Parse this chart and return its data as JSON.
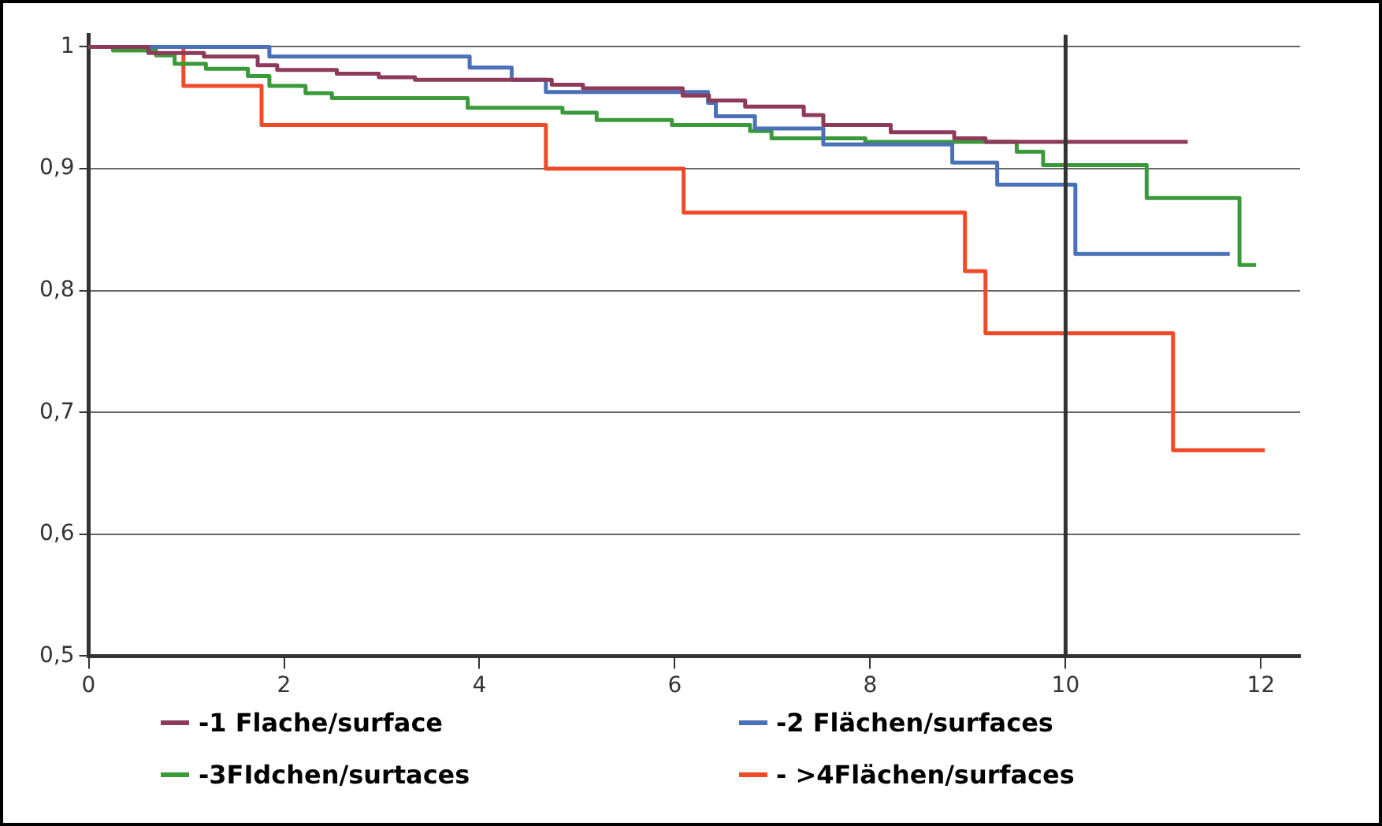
{
  "chart_data": {
    "type": "step",
    "xlim": [
      0,
      12.4
    ],
    "ylim": [
      0.5,
      1.01
    ],
    "xticks": [
      0,
      2,
      4,
      6,
      8,
      10,
      12
    ],
    "yticks": [
      {
        "value": 0.5,
        "label": "0,5"
      },
      {
        "value": 0.6,
        "label": "0,6"
      },
      {
        "value": 0.7,
        "label": "0,7"
      },
      {
        "value": 0.8,
        "label": "0,8"
      },
      {
        "value": 0.9,
        "label": "0,9"
      },
      1
    ],
    "grid": "y",
    "legend": "bottom",
    "marker": "none",
    "line_style": "solid",
    "ref_lines": [
      {
        "axis": "x",
        "value": 10,
        "color": "#333333"
      }
    ],
    "series": [
      {
        "name": "-1 Flache/surface",
        "color": "#8e3a5a",
        "x": [
          0,
          0.61,
          1.18,
          1.73,
          1.93,
          2.54,
          2.97,
          3.34,
          4.74,
          5.06,
          6.08,
          6.35,
          6.72,
          7.32,
          7.52,
          8.21,
          8.86,
          9.18,
          11.25
        ],
        "values": [
          1,
          0.995,
          0.992,
          0.985,
          0.981,
          0.978,
          0.975,
          0.973,
          0.969,
          0.966,
          0.96,
          0.956,
          0.951,
          0.944,
          0.936,
          0.93,
          0.925,
          0.922,
          0.922
        ]
      },
      {
        "name": "-2 Flächen/surfaces",
        "color": "#4a70b8",
        "x": [
          0,
          1.85,
          3.9,
          4.33,
          4.68,
          6.34,
          6.42,
          6.82,
          7.52,
          8.84,
          9.3,
          10.1,
          11.68
        ],
        "values": [
          1,
          0.992,
          0.983,
          0.973,
          0.963,
          0.954,
          0.943,
          0.933,
          0.92,
          0.905,
          0.887,
          0.83,
          0.83
        ]
      },
      {
        "name": "-3FIdchen/surtaces",
        "color": "#3a9a3a",
        "x": [
          0,
          0.25,
          0.69,
          0.88,
          1.2,
          1.63,
          1.85,
          2.22,
          2.49,
          3.88,
          4.85,
          5.2,
          5.97,
          6.77,
          6.99,
          7.95,
          9.5,
          9.77,
          10.83,
          11.78,
          11.95
        ],
        "values": [
          1,
          0.997,
          0.993,
          0.986,
          0.982,
          0.976,
          0.968,
          0.962,
          0.958,
          0.95,
          0.946,
          0.94,
          0.936,
          0.931,
          0.925,
          0.922,
          0.914,
          0.903,
          0.876,
          0.821,
          0.821
        ]
      },
      {
        "name": "- >4Flächen/surfaces",
        "color": "#f04a28",
        "x": [
          0,
          0.97,
          1.77,
          4.68,
          6.09,
          8.97,
          9.18,
          11.1,
          12.04
        ],
        "values": [
          1,
          0.968,
          0.936,
          0.9,
          0.864,
          0.816,
          0.765,
          0.669,
          0.669
        ]
      }
    ]
  }
}
